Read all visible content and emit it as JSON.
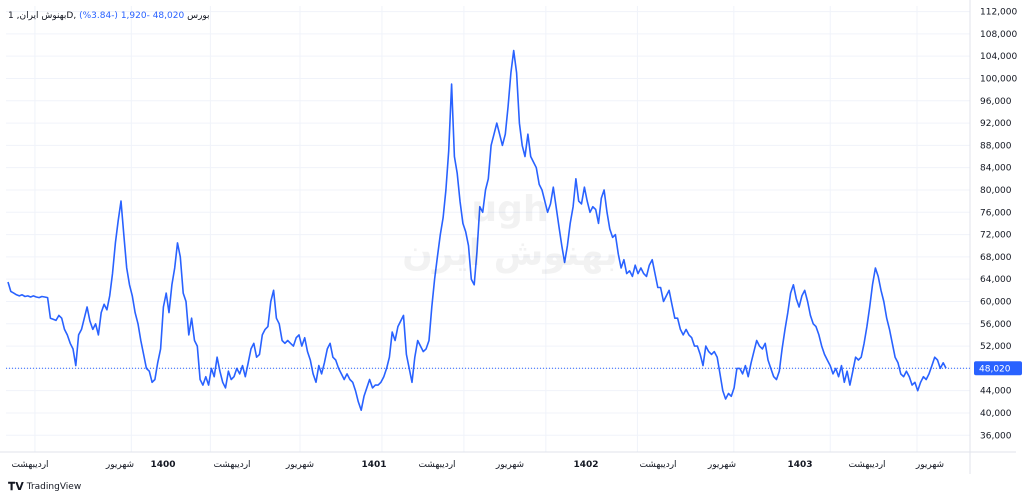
{
  "legend": {
    "symbol": "بهنوش ایران, 1D, بورس",
    "symbol_label": "بهنوش ایران, 1D, بورس",
    "last": "48,020",
    "change": "-1,920 (-3.84%)"
  },
  "watermark": {
    "line1": "ugh",
    "line2": "بهنوش ایرن"
  },
  "footer": {
    "brand": "TradingView"
  },
  "colors": {
    "line": "#2962ff",
    "grid": "#f0f3fa",
    "axis_text": "#131722",
    "price_tag": "#2962ff"
  },
  "chart_data": {
    "type": "line",
    "title": "",
    "xlabel": "",
    "ylabel": "",
    "ylim": [
      33000,
      113000
    ],
    "y_ticks": [
      112000,
      108000,
      104000,
      100000,
      96000,
      92000,
      88000,
      84000,
      80000,
      76000,
      72000,
      68000,
      64000,
      60000,
      56000,
      52000,
      48000,
      44000,
      40000,
      36000
    ],
    "y_tick_labels": [
      "112,000",
      "108,000",
      "104,000",
      "100,000",
      "96,000",
      "92,000",
      "88,000",
      "84,000",
      "80,000",
      "76,000",
      "72,000",
      "68,000",
      "64,000",
      "60,000",
      "56,000",
      "52,000",
      "48,000",
      "44,000",
      "40,000",
      "36,000"
    ],
    "x_labels": [
      {
        "label": "اردیبهشت",
        "pos": 0.03,
        "bold": false
      },
      {
        "label": "شهریور",
        "pos": 0.13,
        "bold": false
      },
      {
        "label": "1400",
        "pos": 0.212,
        "bold": true
      },
      {
        "label": "اردیبهشت",
        "pos": 0.305,
        "bold": false
      },
      {
        "label": "شهریور",
        "pos": 0.39,
        "bold": false
      },
      {
        "label": "1401",
        "pos": 0.475,
        "bold": true
      },
      {
        "label": "اردیبهشت",
        "pos": 0.56,
        "bold": false
      },
      {
        "label": "شهریور",
        "pos": 0.655,
        "bold": false
      },
      {
        "label": "1402",
        "pos": 0.755,
        "bold": true
      },
      {
        "label": "اردیبهشت",
        "pos": 0.855,
        "bold": false
      },
      {
        "label": "شهریور",
        "pos": 0.945,
        "bold": false
      }
    ],
    "x_labels_2": [
      {
        "label": "1403",
        "pos": 0.16,
        "bold": true
      },
      {
        "label": "اردیبهشت",
        "pos": 0.26,
        "bold": false
      },
      {
        "label": "شهریور",
        "pos": 0.36,
        "bold": false
      }
    ],
    "last_value": 48020,
    "last_value_label": "48,020",
    "series": [
      {
        "name": "",
        "values": [
          63500,
          61800,
          61500,
          61200,
          61000,
          61200,
          60900,
          61000,
          60800,
          61000,
          60800,
          60700,
          60900,
          60800,
          60700,
          57000,
          56800,
          56600,
          57500,
          57000,
          55000,
          54000,
          52500,
          51500,
          48500,
          54000,
          55000,
          57000,
          59000,
          56500,
          55000,
          56000,
          54000,
          58000,
          59500,
          58500,
          61000,
          65000,
          70500,
          74500,
          78000,
          72000,
          66000,
          63000,
          61000,
          58000,
          56000,
          53000,
          50500,
          48000,
          47500,
          45500,
          46000,
          49000,
          51500,
          59000,
          61500,
          58000,
          63000,
          66000,
          70500,
          68000,
          61500,
          60000,
          54000,
          57000,
          53000,
          52000,
          46000,
          45000,
          46500,
          45000,
          48000,
          46500,
          50000,
          47500,
          45500,
          44500,
          47500,
          46000,
          46500,
          48000,
          47000,
          48500,
          46500,
          49000,
          51500,
          52500,
          50000,
          50500,
          54000,
          55000,
          55500,
          60000,
          62000,
          57000,
          56000,
          53000,
          52500,
          53000,
          52500,
          52000,
          53500,
          54000,
          52000,
          53500,
          51000,
          49500,
          47000,
          45500,
          48500,
          47000,
          49000,
          51500,
          52500,
          50000,
          49500,
          48000,
          47000,
          46000,
          47000,
          46000,
          45500,
          44000,
          42000,
          40500,
          43000,
          44500,
          46000,
          44500,
          45000,
          45000,
          45500,
          46500,
          48000,
          50000,
          54500,
          53000,
          55500,
          56500,
          57500,
          50500,
          48000,
          45500,
          50000,
          53000,
          52000,
          51000,
          51500,
          53000,
          59000,
          64000,
          68000,
          72000,
          75000,
          80000,
          87000,
          99000,
          86000,
          83000,
          78000,
          74000,
          72500,
          70000,
          64000,
          63000,
          69000,
          77000,
          76000,
          80000,
          82000,
          88000,
          90000,
          92000,
          90000,
          88000,
          90000,
          95000,
          101000,
          105000,
          101000,
          92000,
          88000,
          86000,
          90000,
          86000,
          85000,
          84000,
          81000,
          80000,
          78000,
          76000,
          77500,
          80500,
          77000,
          73500,
          70000,
          67000,
          70000,
          74000,
          77000,
          82000,
          78000,
          77500,
          80500,
          78000,
          76000,
          77000,
          76500,
          74000,
          78500,
          80000,
          76000,
          73000,
          71500,
          72000,
          68500,
          66000,
          67500,
          65000,
          65500,
          64500,
          66500,
          65000,
          66000,
          65000,
          64500,
          66500,
          67500,
          65000,
          62500,
          62500,
          60000,
          61000,
          62000,
          59500,
          57000,
          57000,
          55000,
          54000,
          55000,
          54000,
          53500,
          52000,
          52000,
          50500,
          48500,
          52000,
          51000,
          50500,
          51000,
          50000,
          47000,
          44000,
          42500,
          43500,
          43000,
          44500,
          48000,
          48000,
          47000,
          48500,
          46500,
          49000,
          51000,
          53000,
          52000,
          51500,
          52500,
          49500,
          48000,
          46500,
          46000,
          47500,
          51500,
          55000,
          58000,
          61500,
          63000,
          60500,
          59000,
          61000,
          62000,
          60000,
          57500,
          56000,
          55500,
          54000,
          52000,
          50500,
          49500,
          48500,
          47000,
          48000,
          46500,
          48500,
          45500,
          47500,
          45000,
          47500,
          50000,
          49500,
          50000,
          52500,
          55500,
          59000,
          63000,
          66000,
          64500,
          62000,
          60000,
          57000,
          55000,
          52500,
          50000,
          49000,
          47000,
          46500,
          47500,
          46500,
          45000,
          45500,
          44000,
          45500,
          46500,
          46000,
          47000,
          48500,
          50000,
          49500,
          48000,
          49000,
          48020
        ]
      }
    ]
  }
}
